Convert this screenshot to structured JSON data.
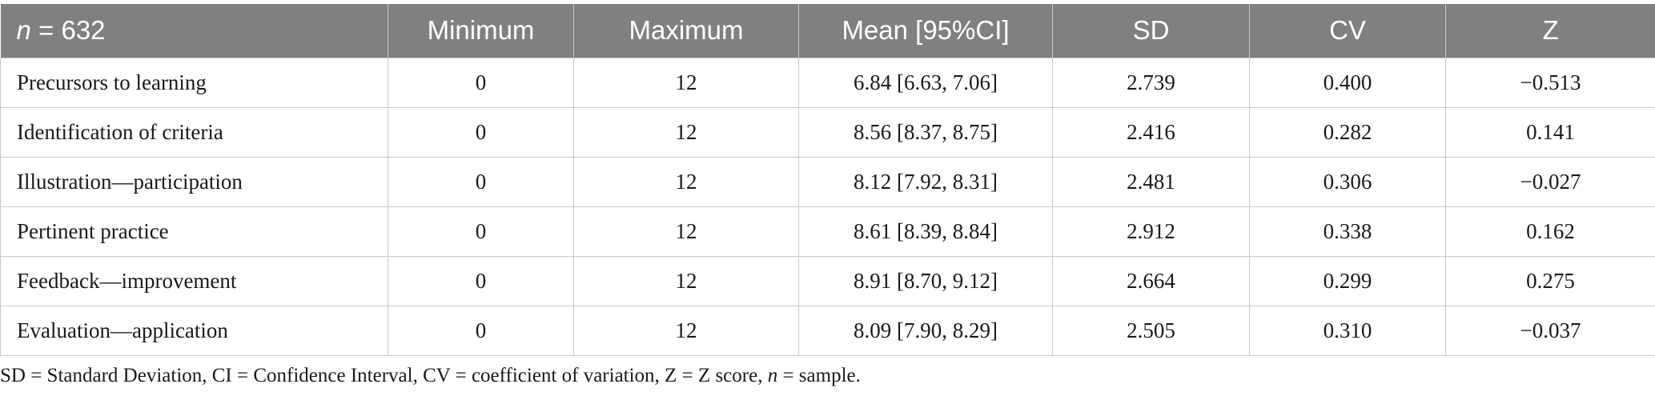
{
  "table": {
    "header": {
      "n_label": "n",
      "n_value": " = 632",
      "columns": [
        "Minimum",
        "Maximum",
        "Mean [95%CI]",
        "SD",
        "CV",
        "Z"
      ]
    },
    "rows": [
      {
        "label": "Precursors to learning",
        "min": "0",
        "max": "12",
        "mean": "6.84 [6.63, 7.06]",
        "sd": "2.739",
        "cv": "0.400",
        "z": "−0.513"
      },
      {
        "label": "Identification of criteria",
        "min": "0",
        "max": "12",
        "mean": "8.56 [8.37, 8.75]",
        "sd": "2.416",
        "cv": "0.282",
        "z": "0.141"
      },
      {
        "label": "Illustration—participation",
        "min": "0",
        "max": "12",
        "mean": "8.12 [7.92, 8.31]",
        "sd": "2.481",
        "cv": "0.306",
        "z": "−0.027"
      },
      {
        "label": "Pertinent practice",
        "min": "0",
        "max": "12",
        "mean": "8.61 [8.39, 8.84]",
        "sd": "2.912",
        "cv": "0.338",
        "z": "0.162"
      },
      {
        "label": "Feedback—improvement",
        "min": "0",
        "max": "12",
        "mean": "8.91 [8.70, 9.12]",
        "sd": "2.664",
        "cv": "0.299",
        "z": "0.275"
      },
      {
        "label": "Evaluation—application",
        "min": "0",
        "max": "12",
        "mean": "8.09 [7.90, 8.29]",
        "sd": "2.505",
        "cv": "0.310",
        "z": "−0.037"
      }
    ]
  },
  "footnote": {
    "text": "SD = Standard Deviation, CI = Confidence Interval, CV = coefficient of variation, Z = Z score, ",
    "n_label": "n",
    "tail": " = sample."
  }
}
